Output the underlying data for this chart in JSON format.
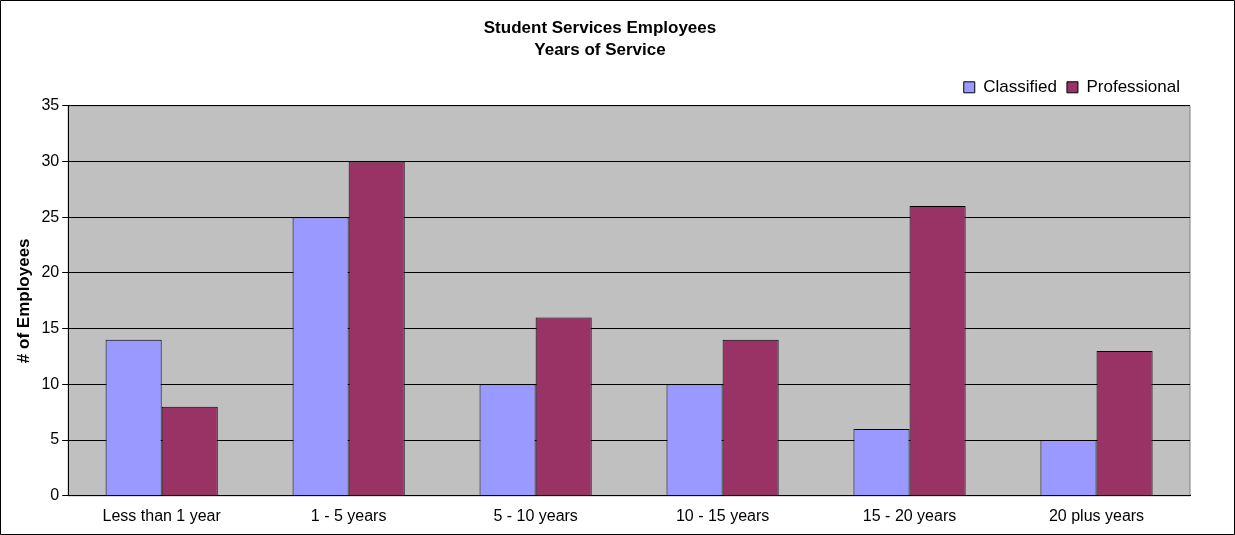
{
  "chart_data": {
    "type": "bar",
    "title": "Student Services Employees",
    "subtitle": "Years of Service",
    "ylabel": "# of Employees",
    "categories": [
      "Less than 1 year",
      "1 - 5 years",
      "5 - 10 years",
      "10 - 15 years",
      "15 - 20 years",
      "20 plus years"
    ],
    "series": [
      {
        "name": "Classified",
        "color": "#9999ff",
        "values": [
          14,
          25,
          10,
          10,
          6,
          5
        ]
      },
      {
        "name": "Professional",
        "color": "#993366",
        "values": [
          8,
          30,
          16,
          14,
          26,
          13
        ]
      }
    ],
    "ylim": [
      0,
      35
    ],
    "yticks": [
      0,
      5,
      10,
      15,
      20,
      25,
      30,
      35
    ],
    "grid": "y",
    "legend": "top right"
  }
}
